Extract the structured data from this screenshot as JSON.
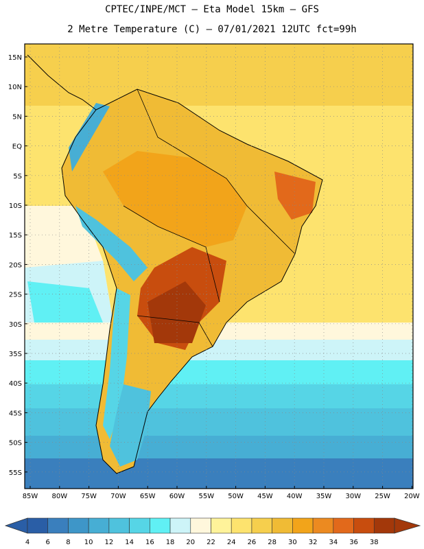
{
  "header": {
    "line1": "CPTEC/INPE/MCT –  Eta Model 15km – GFS",
    "line2": "2 Metre Temperature (C) – 07/01/2021 12UTC fct=99h"
  },
  "axes": {
    "lat_labels": [
      "15N",
      "10N",
      "5N",
      "EQ",
      "5S",
      "10S",
      "15S",
      "20S",
      "25S",
      "30S",
      "35S",
      "40S",
      "45S",
      "50S",
      "55S"
    ],
    "lon_labels": [
      "85W",
      "80W",
      "75W",
      "70W",
      "65W",
      "60W",
      "55W",
      "50W",
      "45W",
      "40W",
      "35W",
      "30W",
      "25W",
      "20W"
    ]
  },
  "colorbar": {
    "colors": [
      "#2a5ea6",
      "#3a7fbd",
      "#3e96c8",
      "#47aed4",
      "#4fc2dd",
      "#56d5e6",
      "#60f0f4",
      "#cdf4f8",
      "#fff7dc",
      "#fff39a",
      "#fde36e",
      "#f6cf4d",
      "#f0bb35",
      "#f2a41a",
      "#ec8a20",
      "#e2691b",
      "#c84d0e",
      "#a3380a"
    ],
    "labels": [
      "4",
      "6",
      "8",
      "10",
      "12",
      "14",
      "16",
      "18",
      "20",
      "22",
      "24",
      "26",
      "28",
      "30",
      "32",
      "34",
      "36",
      "38"
    ]
  }
}
